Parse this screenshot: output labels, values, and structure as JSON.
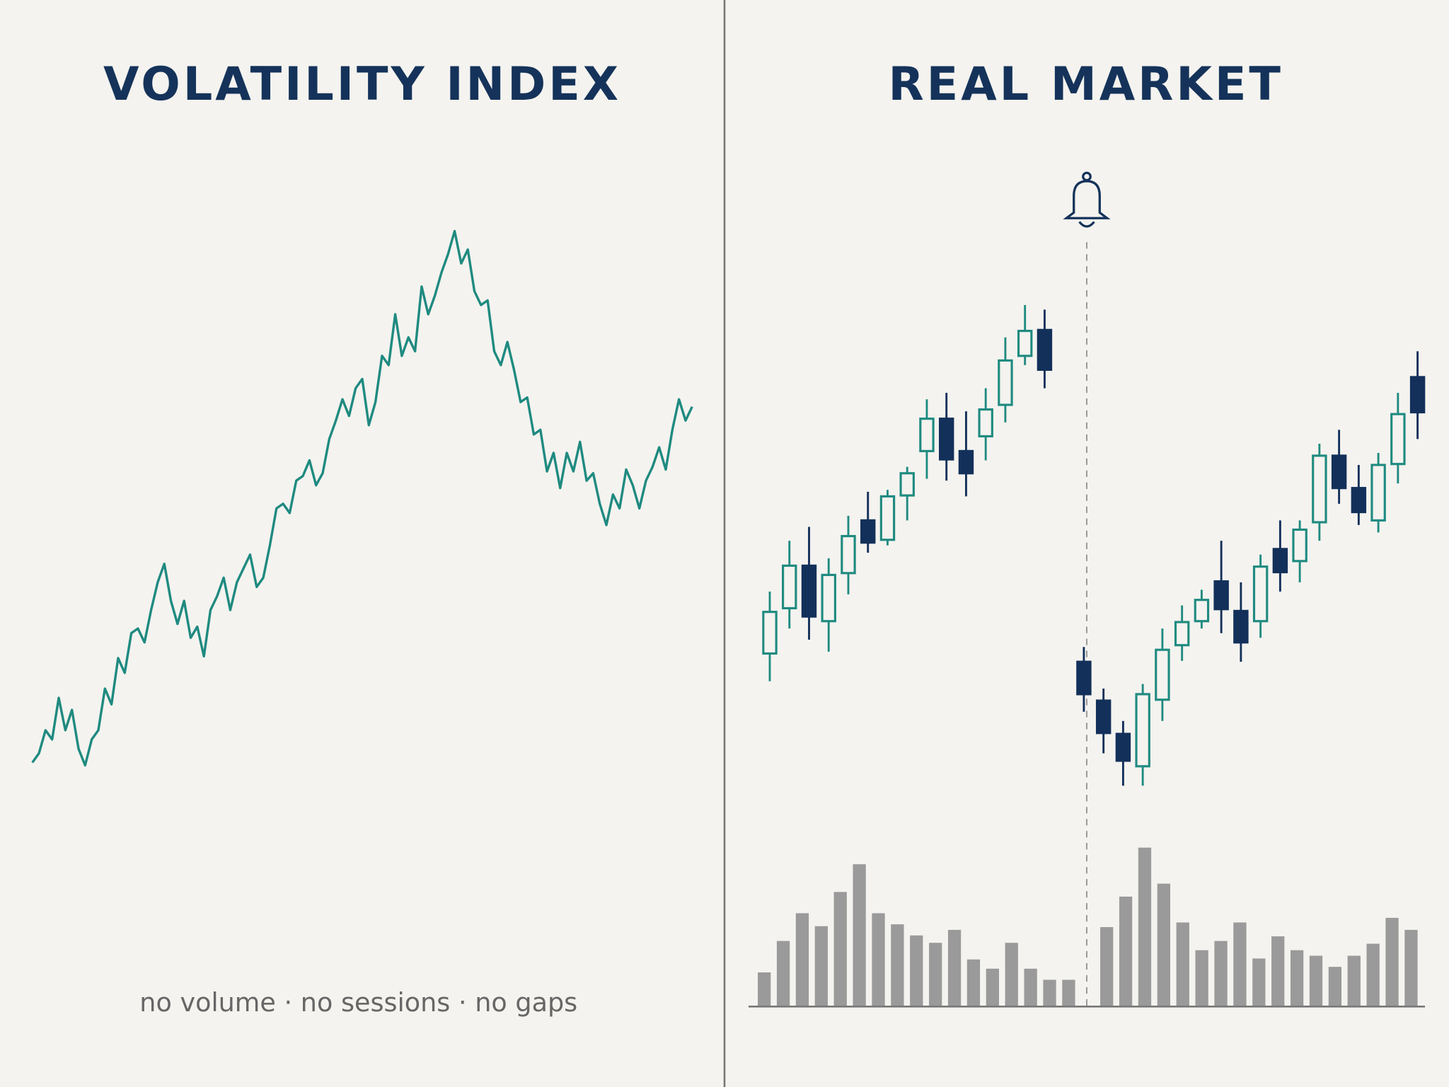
{
  "footnote": "no volume · no sessions · no gaps",
  "chart_data": [
    {
      "type": "line",
      "title": "VOLATILITY INDEX",
      "color": "#1f8a80",
      "ylim": [
        100,
        800
      ],
      "values": [
        175,
        185,
        210,
        200,
        245,
        210,
        232,
        190,
        172,
        200,
        210,
        255,
        238,
        288,
        272,
        315,
        320,
        305,
        340,
        370,
        390,
        350,
        325,
        350,
        310,
        322,
        290,
        340,
        355,
        375,
        340,
        370,
        385,
        400,
        365,
        375,
        410,
        450,
        455,
        445,
        480,
        485,
        502,
        475,
        488,
        525,
        545,
        568,
        550,
        580,
        590,
        540,
        565,
        615,
        605,
        660,
        615,
        635,
        620,
        690,
        660,
        680,
        705,
        725,
        750,
        715,
        730,
        685,
        670,
        675,
        620,
        605,
        630,
        600,
        565,
        570,
        530,
        535,
        490,
        510,
        472,
        510,
        490,
        522,
        480,
        488,
        455,
        432,
        465,
        450,
        492,
        475,
        450,
        480,
        495,
        516,
        492,
        535,
        568,
        545,
        560
      ]
    },
    {
      "type": "candlestick",
      "title": "REAL MARKET",
      "up_color": "#1f8a80",
      "down_color": "#13305a",
      "ylim": [
        130,
        700
      ],
      "open": [
        293,
        342,
        388,
        328,
        380,
        437,
        416,
        464,
        512,
        547,
        512,
        528,
        562,
        615,
        643,
        null,
        284,
        242,
        206,
        171,
        243,
        302,
        328,
        371,
        339,
        328,
        406,
        393,
        435,
        507,
        472,
        437,
        498,
        592
      ],
      "high": [
        360,
        415,
        430,
        396,
        442,
        468,
        470,
        495,
        568,
        575,
        555,
        580,
        635,
        670,
        665,
        null,
        300,
        255,
        220,
        260,
        320,
        345,
        362,
        415,
        370,
        400,
        437,
        437,
        520,
        535,
        497,
        510,
        575,
        620
      ],
      "low": [
        263,
        320,
        308,
        295,
        357,
        402,
        410,
        437,
        482,
        480,
        463,
        502,
        543,
        605,
        580,
        null,
        230,
        185,
        150,
        150,
        220,
        285,
        320,
        315,
        284,
        310,
        360,
        370,
        415,
        455,
        432,
        424,
        477,
        525
      ],
      "close": [
        338,
        388,
        333,
        378,
        420,
        413,
        463,
        488,
        547,
        503,
        488,
        557,
        610,
        642,
        600,
        null,
        249,
        207,
        177,
        249,
        297,
        327,
        351,
        341,
        305,
        387,
        381,
        427,
        507,
        472,
        446,
        497,
        552,
        554
      ]
    },
    {
      "type": "bar",
      "color": "#9a9a9a",
      "ylim": [
        0,
        200
      ],
      "values": [
        36,
        70,
        100,
        86,
        123,
        153,
        100,
        88,
        76,
        68,
        82,
        50,
        40,
        68,
        40,
        28,
        28,
        null,
        85,
        118,
        171,
        132,
        90,
        60,
        70,
        90,
        51,
        75,
        60,
        54,
        42,
        54,
        67,
        95,
        82
      ]
    }
  ]
}
